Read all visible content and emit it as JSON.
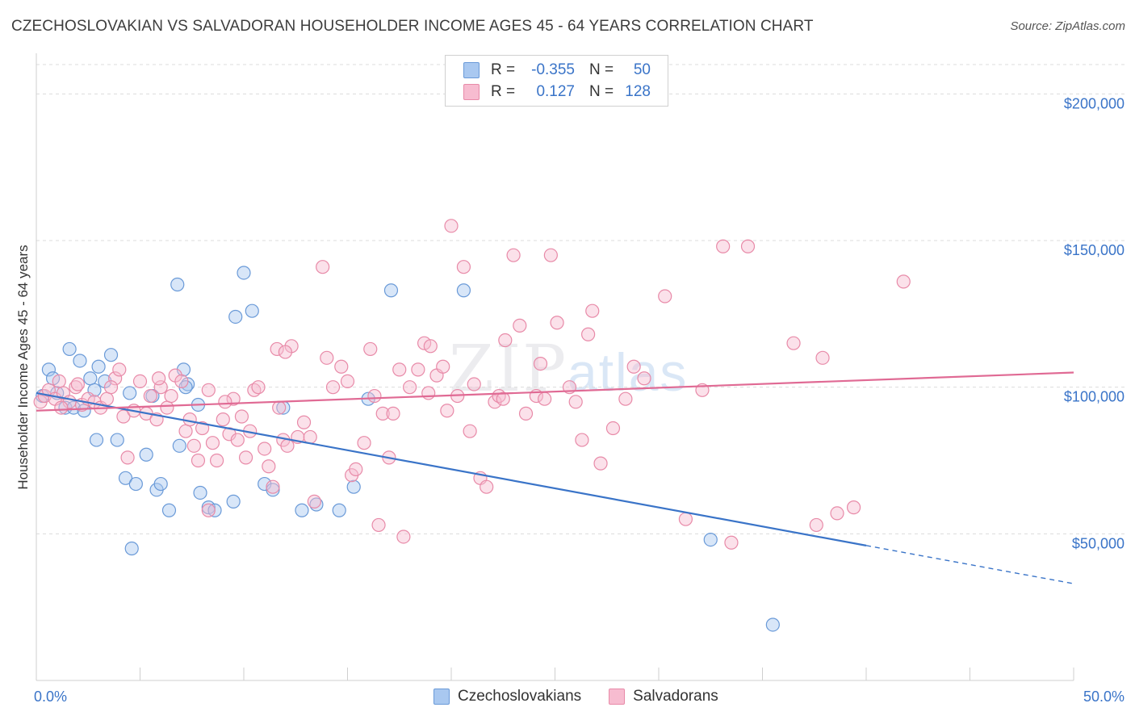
{
  "header": {
    "title": "CZECHOSLOVAKIAN VS SALVADORAN HOUSEHOLDER INCOME AGES 45 - 64 YEARS CORRELATION CHART",
    "source": "Source: ZipAtlas.com"
  },
  "legend": {
    "rows": [
      {
        "r_label": "R =",
        "r_value": "-0.355",
        "n_label": "N =",
        "n_value": "50",
        "color": "#a9c8f0",
        "border": "#6a9ad8"
      },
      {
        "r_label": "R =",
        "r_value": "0.127",
        "n_label": "N =",
        "n_value": "128",
        "color": "#f7bcd0",
        "border": "#e88aa8"
      }
    ]
  },
  "bottom_legend": {
    "items": [
      {
        "label": "Czechoslovakians",
        "color": "#a9c8f0",
        "border": "#6a9ad8"
      },
      {
        "label": "Salvadorans",
        "color": "#f7bcd0",
        "border": "#e88aa8"
      }
    ]
  },
  "watermark": {
    "zip": "ZIP",
    "atlas": "atlas"
  },
  "chart_data": {
    "type": "scatter",
    "title": "CZECHOSLOVAKIAN VS SALVADORAN HOUSEHOLDER INCOME AGES 45 - 64 YEARS CORRELATION CHART",
    "xlabel": "",
    "ylabel": "Householder Income Ages 45 - 64 years",
    "xlim": [
      0,
      50
    ],
    "ylim": [
      0,
      210000
    ],
    "x_tick_labels": [
      "0.0%",
      "50.0%"
    ],
    "y_ticks": [
      50000,
      100000,
      150000,
      200000
    ],
    "y_tick_labels": [
      "$50,000",
      "$100,000",
      "$150,000",
      "$200,000"
    ],
    "grid": true,
    "series": [
      {
        "name": "Czechoslovakians",
        "color": "#a9c8f0",
        "stroke": "#6a9ad8",
        "trend_color": "#3a74c8",
        "trend": {
          "x0": 0,
          "y0": 98000,
          "x1": 40,
          "y1": 46000,
          "dash_x1": 50,
          "dash_y1": 33000
        },
        "points": [
          [
            0.3,
            97000
          ],
          [
            0.6,
            106000
          ],
          [
            0.8,
            103000
          ],
          [
            1.0,
            98000
          ],
          [
            1.4,
            93000
          ],
          [
            1.6,
            113000
          ],
          [
            1.8,
            93000
          ],
          [
            2.1,
            109000
          ],
          [
            2.3,
            92000
          ],
          [
            2.6,
            103000
          ],
          [
            2.8,
            99000
          ],
          [
            3.0,
            107000
          ],
          [
            3.3,
            102000
          ],
          [
            3.6,
            111000
          ],
          [
            2.9,
            82000
          ],
          [
            3.9,
            82000
          ],
          [
            4.3,
            69000
          ],
          [
            4.6,
            45000
          ],
          [
            4.8,
            67000
          ],
          [
            5.3,
            77000
          ],
          [
            5.6,
            97000
          ],
          [
            5.8,
            65000
          ],
          [
            6.0,
            67000
          ],
          [
            6.4,
            58000
          ],
          [
            6.8,
            135000
          ],
          [
            6.9,
            80000
          ],
          [
            7.1,
            106000
          ],
          [
            7.3,
            101000
          ],
          [
            7.9,
            64000
          ],
          [
            7.8,
            94000
          ],
          [
            8.3,
            59000
          ],
          [
            8.6,
            58000
          ],
          [
            9.5,
            61000
          ],
          [
            9.6,
            124000
          ],
          [
            10.0,
            139000
          ],
          [
            10.4,
            126000
          ],
          [
            11.0,
            67000
          ],
          [
            11.4,
            65000
          ],
          [
            11.9,
            93000
          ],
          [
            12.8,
            58000
          ],
          [
            13.5,
            60000
          ],
          [
            14.6,
            58000
          ],
          [
            15.3,
            66000
          ],
          [
            16.0,
            96000
          ],
          [
            17.1,
            133000
          ],
          [
            20.6,
            133000
          ],
          [
            32.5,
            48000
          ],
          [
            35.5,
            19000
          ],
          [
            4.5,
            98000
          ],
          [
            7.2,
            100000
          ]
        ]
      },
      {
        "name": "Salvadorans",
        "color": "#f7bcd0",
        "stroke": "#e88aa8",
        "trend_color": "#e06a94",
        "trend": {
          "x0": 0,
          "y0": 92000,
          "x1": 50,
          "y1": 105000
        },
        "points": [
          [
            0.2,
            95000
          ],
          [
            0.4,
            97000
          ],
          [
            0.6,
            99000
          ],
          [
            0.9,
            96000
          ],
          [
            1.1,
            102000
          ],
          [
            1.3,
            98000
          ],
          [
            1.6,
            95000
          ],
          [
            1.9,
            100000
          ],
          [
            2.2,
            94000
          ],
          [
            2.5,
            96000
          ],
          [
            2.8,
            95000
          ],
          [
            3.1,
            93000
          ],
          [
            3.4,
            96000
          ],
          [
            3.8,
            103000
          ],
          [
            4.0,
            106000
          ],
          [
            4.2,
            90000
          ],
          [
            4.4,
            76000
          ],
          [
            4.7,
            92000
          ],
          [
            5.0,
            102000
          ],
          [
            5.3,
            91000
          ],
          [
            5.5,
            97000
          ],
          [
            5.8,
            89000
          ],
          [
            6.0,
            100000
          ],
          [
            6.3,
            93000
          ],
          [
            6.5,
            97000
          ],
          [
            6.7,
            104000
          ],
          [
            7.0,
            102000
          ],
          [
            7.2,
            85000
          ],
          [
            7.4,
            89000
          ],
          [
            7.6,
            80000
          ],
          [
            7.8,
            75000
          ],
          [
            8.0,
            86000
          ],
          [
            8.3,
            99000
          ],
          [
            8.5,
            81000
          ],
          [
            8.7,
            75000
          ],
          [
            9.0,
            89000
          ],
          [
            9.3,
            84000
          ],
          [
            9.5,
            96000
          ],
          [
            9.7,
            82000
          ],
          [
            9.9,
            90000
          ],
          [
            10.1,
            76000
          ],
          [
            10.3,
            85000
          ],
          [
            10.5,
            99000
          ],
          [
            10.7,
            100000
          ],
          [
            11.0,
            79000
          ],
          [
            11.2,
            73000
          ],
          [
            11.4,
            66000
          ],
          [
            11.6,
            113000
          ],
          [
            11.9,
            82000
          ],
          [
            12.1,
            80000
          ],
          [
            12.3,
            114000
          ],
          [
            12.6,
            83000
          ],
          [
            12.9,
            88000
          ],
          [
            13.2,
            83000
          ],
          [
            13.4,
            61000
          ],
          [
            13.8,
            141000
          ],
          [
            14.0,
            110000
          ],
          [
            14.3,
            100000
          ],
          [
            14.7,
            107000
          ],
          [
            15.0,
            102000
          ],
          [
            15.2,
            70000
          ],
          [
            15.4,
            72000
          ],
          [
            15.8,
            81000
          ],
          [
            16.1,
            113000
          ],
          [
            16.3,
            97000
          ],
          [
            16.5,
            53000
          ],
          [
            16.7,
            91000
          ],
          [
            17.0,
            76000
          ],
          [
            17.2,
            91000
          ],
          [
            17.5,
            106000
          ],
          [
            17.7,
            49000
          ],
          [
            18.0,
            100000
          ],
          [
            18.4,
            106000
          ],
          [
            18.7,
            115000
          ],
          [
            19.0,
            114000
          ],
          [
            19.3,
            104000
          ],
          [
            19.6,
            107000
          ],
          [
            19.8,
            92000
          ],
          [
            20.0,
            155000
          ],
          [
            20.3,
            97000
          ],
          [
            20.6,
            141000
          ],
          [
            20.9,
            85000
          ],
          [
            21.1,
            101000
          ],
          [
            21.4,
            69000
          ],
          [
            21.7,
            66000
          ],
          [
            22.1,
            95000
          ],
          [
            22.3,
            97000
          ],
          [
            22.6,
            116000
          ],
          [
            23.0,
            145000
          ],
          [
            23.3,
            121000
          ],
          [
            23.6,
            91000
          ],
          [
            24.1,
            97000
          ],
          [
            24.3,
            108000
          ],
          [
            24.8,
            145000
          ],
          [
            25.1,
            122000
          ],
          [
            25.7,
            100000
          ],
          [
            26.3,
            82000
          ],
          [
            26.6,
            118000
          ],
          [
            26.8,
            126000
          ],
          [
            27.2,
            74000
          ],
          [
            27.8,
            86000
          ],
          [
            28.4,
            96000
          ],
          [
            28.8,
            107000
          ],
          [
            29.3,
            103000
          ],
          [
            31.3,
            55000
          ],
          [
            30.3,
            131000
          ],
          [
            32.1,
            99000
          ],
          [
            33.1,
            148000
          ],
          [
            33.5,
            47000
          ],
          [
            34.3,
            148000
          ],
          [
            36.5,
            115000
          ],
          [
            37.6,
            53000
          ],
          [
            37.9,
            110000
          ],
          [
            38.6,
            57000
          ],
          [
            39.4,
            59000
          ],
          [
            41.8,
            136000
          ],
          [
            8.3,
            58000
          ],
          [
            5.9,
            103000
          ],
          [
            3.6,
            100000
          ],
          [
            2.0,
            101000
          ],
          [
            1.2,
            93000
          ],
          [
            12.0,
            112000
          ],
          [
            22.5,
            96000
          ],
          [
            26.0,
            95000
          ],
          [
            24.5,
            96000
          ],
          [
            18.9,
            98000
          ],
          [
            11.7,
            93000
          ],
          [
            9.1,
            95000
          ]
        ]
      }
    ]
  }
}
